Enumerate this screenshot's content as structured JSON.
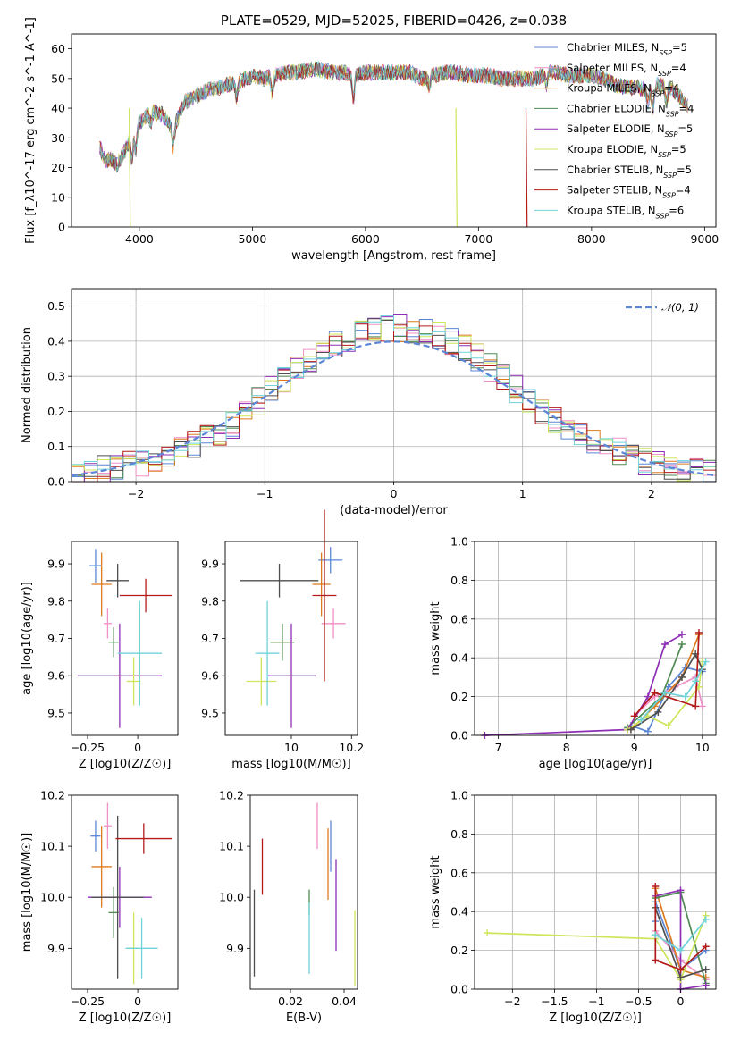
{
  "palette": {
    "Chabrier MILES": "#5b86d6",
    "Salpeter MILES": "#f18fc7",
    "Kroupa MILES": "#dd7a1e",
    "Chabrier ELODIE": "#4f8a52",
    "Salpeter ELODIE": "#8e2fb5",
    "Kroupa ELODIE": "#cde65c",
    "Chabrier STELIB": "#4e4e4e",
    "Salpeter STELIB": "#b31b1b",
    "Kroupa STELIB": "#6fd3d9"
  },
  "chart_data": [
    {
      "id": "spectrum",
      "type": "line",
      "title": "PLATE=0529, MJD=52025, FIBERID=0426, z=0.038",
      "xlabel": "wavelength [Angstrom, rest frame]",
      "ylabel": "Flux [f_λ10^-17 erg cm^-2 s^-1 A^-1]",
      "xlim": [
        3400,
        9100
      ],
      "ylim": [
        0,
        65
      ],
      "xticks": [
        4000,
        5000,
        6000,
        7000,
        8000,
        9000
      ],
      "yticks": [
        0,
        10,
        20,
        30,
        40,
        50,
        60
      ],
      "grid": false,
      "legend_position": "top-right",
      "continuum": {
        "wavelength": [
          3650,
          3700,
          3750,
          3800,
          3850,
          3900,
          3950,
          4000,
          4100,
          4200,
          4300,
          4400,
          4500,
          4600,
          4700,
          4800,
          4900,
          5000,
          5100,
          5200,
          5300,
          5400,
          5500,
          5600,
          5700,
          5800,
          5900,
          6000,
          6100,
          6200,
          6300,
          6400,
          6500,
          6600,
          6700,
          6800,
          6900,
          7000,
          7100,
          7200,
          7300,
          7400,
          7500,
          7600,
          7700,
          7800,
          7900,
          8000,
          8100,
          8200,
          8300,
          8400,
          8500,
          8600,
          8700,
          8800,
          8850
        ],
        "flux": [
          27,
          22,
          23,
          21,
          24,
          28,
          32,
          35,
          39,
          38,
          33,
          42,
          44,
          46,
          47,
          48,
          49,
          51,
          50,
          51,
          52,
          52,
          53,
          53,
          52,
          52,
          51,
          52,
          52,
          52,
          52,
          52,
          50,
          51,
          52,
          52,
          51,
          51,
          51,
          50,
          50,
          50,
          50,
          52,
          52,
          51,
          51,
          51,
          50,
          48,
          47,
          47,
          46,
          48,
          47,
          43,
          41
        ]
      },
      "series": [
        {
          "name": "Chabrier MILES, N_SSP=5",
          "model": "Chabrier MILES"
        },
        {
          "name": "Salpeter MILES, N_SSP=4",
          "model": "Salpeter MILES"
        },
        {
          "name": "Kroupa MILES, N_SSP=4",
          "model": "Kroupa MILES"
        },
        {
          "name": "Chabrier ELODIE, N_SSP=4",
          "model": "Chabrier ELODIE"
        },
        {
          "name": "Salpeter ELODIE, N_SSP=5",
          "model": "Salpeter ELODIE"
        },
        {
          "name": "Kroupa ELODIE, N_SSP=5",
          "model": "Kroupa ELODIE"
        },
        {
          "name": "Chabrier STELIB, N_SSP=5",
          "model": "Chabrier STELIB"
        },
        {
          "name": "Salpeter STELIB, N_SSP=4",
          "model": "Salpeter STELIB"
        },
        {
          "name": "Kroupa STELIB, N_SSP=6",
          "model": "Kroupa STELIB"
        }
      ],
      "legend": [
        {
          "pre": "Chabrier MILES, N",
          "post": "=5",
          "model": "Chabrier MILES"
        },
        {
          "pre": "Salpeter MILES, N",
          "post": "=4",
          "model": "Salpeter MILES"
        },
        {
          "pre": "Kroupa MILES, N",
          "post": "=4",
          "model": "Kroupa MILES"
        },
        {
          "pre": "Chabrier ELODIE, N",
          "post": "=4",
          "model": "Chabrier ELODIE"
        },
        {
          "pre": "Salpeter ELODIE, N",
          "post": "=5",
          "model": "Salpeter ELODIE"
        },
        {
          "pre": "Kroupa ELODIE, N",
          "post": "=5",
          "model": "Kroupa ELODIE"
        },
        {
          "pre": "Chabrier STELIB, N",
          "post": "=5",
          "model": "Chabrier STELIB"
        },
        {
          "pre": "Salpeter STELIB, N",
          "post": "=4",
          "model": "Salpeter STELIB"
        },
        {
          "pre": "Kroupa STELIB, N",
          "post": "=6",
          "model": "Kroupa STELIB"
        }
      ],
      "legend_sub": "SSP"
    },
    {
      "id": "residuals",
      "type": "line",
      "xlabel": "(data-model)/error",
      "ylabel": "Normed distribution",
      "xlim": [
        -2.5,
        2.5
      ],
      "ylim": [
        0,
        0.55
      ],
      "xticks": [
        -2,
        -1,
        0,
        1,
        2
      ],
      "yticks": [
        0.0,
        0.1,
        0.2,
        0.3,
        0.4,
        0.5
      ],
      "grid": true,
      "legend_position": "top-right",
      "legend": [
        "𝒩(0, 1)"
      ],
      "bin_width": 0.1,
      "bin_start": -2.5,
      "envelope": {
        "x": [
          -2.5,
          -2.0,
          -1.5,
          -1.2,
          -1.0,
          -0.8,
          -0.6,
          -0.4,
          -0.2,
          0.0,
          0.2,
          0.4,
          0.6,
          0.8,
          1.0,
          1.2,
          1.5,
          2.0,
          2.5
        ],
        "y": [
          0.02,
          0.05,
          0.11,
          0.17,
          0.25,
          0.31,
          0.36,
          0.4,
          0.43,
          0.44,
          0.43,
          0.41,
          0.37,
          0.31,
          0.25,
          0.19,
          0.12,
          0.05,
          0.02
        ]
      }
    },
    {
      "id": "age-vs-z",
      "type": "scatter",
      "xlabel": "Z [log10(Z/Z☉)]",
      "ylabel": "age [log10(age/yr)]",
      "xlim": [
        -0.33,
        0.2
      ],
      "ylim": [
        9.44,
        9.96
      ],
      "xticks": [
        -0.25,
        0.0
      ],
      "yticks": [
        9.5,
        9.6,
        9.7,
        9.8,
        9.9
      ],
      "points": [
        {
          "model": "Chabrier MILES",
          "x": -0.21,
          "xerr": 0.03,
          "y": 9.895,
          "yerr": 0.045
        },
        {
          "model": "Salpeter MILES",
          "x": -0.15,
          "xerr": 0.02,
          "y": 9.74,
          "yerr": 0.04
        },
        {
          "model": "Kroupa MILES",
          "x": -0.18,
          "xerr": 0.05,
          "y": 9.845,
          "yerr": 0.085
        },
        {
          "model": "Chabrier ELODIE",
          "x": -0.12,
          "xerr": 0.025,
          "y": 9.69,
          "yerr": 0.04
        },
        {
          "model": "Salpeter ELODIE",
          "x": -0.09,
          "xerr": 0.21,
          "y": 9.6,
          "yerr": 0.14
        },
        {
          "model": "Kroupa ELODIE",
          "x": -0.02,
          "xerr": 0.035,
          "y": 9.585,
          "yerr": 0.065
        },
        {
          "model": "Chabrier STELIB",
          "x": -0.1,
          "xerr": 0.055,
          "y": 9.855,
          "yerr": 0.045
        },
        {
          "model": "Salpeter STELIB",
          "x": 0.04,
          "xerr": 0.13,
          "y": 9.815,
          "yerr": 0.045
        },
        {
          "model": "Kroupa STELIB",
          "x": 0.01,
          "xerr": 0.11,
          "y": 9.66,
          "yerr": 0.14
        }
      ]
    },
    {
      "id": "age-vs-mass",
      "type": "scatter",
      "xlabel": "mass [log10(M/M☉)]",
      "ylabel": "",
      "xlim": [
        9.78,
        10.22
      ],
      "ylim": [
        9.44,
        9.96
      ],
      "xticks": [
        10.0,
        10.2
      ],
      "yticks": [
        9.5,
        9.6,
        9.7,
        9.8,
        9.9
      ],
      "points": [
        {
          "model": "Chabrier MILES",
          "x": 10.13,
          "xerr": 0.04,
          "y": 9.91,
          "yerr": 0.035
        },
        {
          "model": "Salpeter MILES",
          "x": 10.14,
          "xerr": 0.04,
          "y": 9.74,
          "yerr": 0.04
        },
        {
          "model": "Kroupa MILES",
          "x": 10.1,
          "xerr": 0.03,
          "y": 9.845,
          "yerr": 0.085
        },
        {
          "model": "Chabrier ELODIE",
          "x": 9.97,
          "xerr": 0.04,
          "y": 9.69,
          "yerr": 0.05
        },
        {
          "model": "Salpeter ELODIE",
          "x": 10.0,
          "xerr": 0.08,
          "y": 9.6,
          "yerr": 0.14
        },
        {
          "model": "Kroupa ELODIE",
          "x": 9.9,
          "xerr": 0.05,
          "y": 9.585,
          "yerr": 0.065
        },
        {
          "model": "Chabrier STELIB",
          "x": 9.96,
          "xerr": 0.13,
          "y": 9.855,
          "yerr": 0.045
        },
        {
          "model": "Salpeter STELIB",
          "x": 10.11,
          "xerr": 0.04,
          "y": 9.815,
          "yerr": 0.23
        },
        {
          "model": "Kroupa STELIB",
          "x": 9.92,
          "xerr": 0.04,
          "y": 9.66,
          "yerr": 0.14
        }
      ]
    },
    {
      "id": "mass-weight-vs-age",
      "type": "line",
      "xlabel": "age [log10(age/yr)]",
      "ylabel": "mass weight",
      "xlim": [
        6.65,
        10.2
      ],
      "ylim": [
        0,
        1.0
      ],
      "xticks": [
        7,
        8,
        9,
        10
      ],
      "yticks": [
        0.0,
        0.2,
        0.4,
        0.6,
        0.8,
        1.0
      ],
      "grid": true,
      "series": [
        {
          "model": "Chabrier MILES",
          "x": [
            8.95,
            9.2,
            9.5,
            9.75,
            10.0
          ],
          "y": [
            0.05,
            0.02,
            0.25,
            0.35,
            0.33
          ]
        },
        {
          "model": "Salpeter MILES",
          "x": [
            9.0,
            9.3,
            9.6,
            9.9,
            10.0
          ],
          "y": [
            0.1,
            0.2,
            0.25,
            0.3,
            0.15
          ]
        },
        {
          "model": "Kroupa MILES",
          "x": [
            8.95,
            9.3,
            9.7,
            9.95
          ],
          "y": [
            0.03,
            0.15,
            0.3,
            0.52
          ]
        },
        {
          "model": "Chabrier ELODIE",
          "x": [
            8.9,
            9.4,
            9.7
          ],
          "y": [
            0.04,
            0.2,
            0.47
          ]
        },
        {
          "model": "Salpeter ELODIE",
          "x": [
            6.8,
            8.9,
            9.2,
            9.45,
            9.7
          ],
          "y": [
            0.0,
            0.03,
            0.2,
            0.47,
            0.52
          ]
        },
        {
          "model": "Kroupa ELODIE",
          "x": [
            8.9,
            9.2,
            9.5,
            9.95,
            10.0
          ],
          "y": [
            0.03,
            0.1,
            0.05,
            0.25,
            0.38
          ]
        },
        {
          "model": "Chabrier STELIB",
          "x": [
            8.95,
            9.35,
            9.7,
            9.9,
            10.0
          ],
          "y": [
            0.03,
            0.12,
            0.3,
            0.42,
            0.34
          ]
        },
        {
          "model": "Salpeter STELIB",
          "x": [
            9.0,
            9.3,
            9.9,
            9.95
          ],
          "y": [
            0.1,
            0.22,
            0.15,
            0.53
          ]
        },
        {
          "model": "Kroupa STELIB",
          "x": [
            9.1,
            9.45,
            9.75,
            9.9,
            10.05
          ],
          "y": [
            0.08,
            0.22,
            0.2,
            0.28,
            0.38
          ]
        }
      ]
    },
    {
      "id": "mass-vs-z",
      "type": "scatter",
      "xlabel": "Z [log10(Z/Z☉)]",
      "ylabel": "mass [log10(M/M☉)]",
      "xlim": [
        -0.33,
        0.2
      ],
      "ylim": [
        9.82,
        10.2
      ],
      "xticks": [
        -0.25,
        0.0
      ],
      "yticks": [
        9.9,
        10.0,
        10.1,
        10.2
      ],
      "points": [
        {
          "model": "Chabrier MILES",
          "x": -0.21,
          "xerr": 0.025,
          "y": 10.12,
          "yerr": 0.03
        },
        {
          "model": "Salpeter MILES",
          "x": -0.15,
          "xerr": 0.02,
          "y": 10.14,
          "yerr": 0.045
        },
        {
          "model": "Kroupa MILES",
          "x": -0.18,
          "xerr": 0.05,
          "y": 10.06,
          "yerr": 0.08
        },
        {
          "model": "Chabrier ELODIE",
          "x": -0.12,
          "xerr": 0.025,
          "y": 9.97,
          "yerr": 0.05
        },
        {
          "model": "Salpeter ELODIE",
          "x": -0.09,
          "xerr": 0.16,
          "y": 10.0,
          "yerr": 0.06
        },
        {
          "model": "Kroupa ELODIE",
          "x": -0.02,
          "xerr": 0.03,
          "y": 9.9,
          "yerr": 0.07
        },
        {
          "model": "Chabrier STELIB",
          "x": -0.1,
          "xerr": 0.13,
          "y": 10.0,
          "yerr": 0.16
        },
        {
          "model": "Salpeter STELIB",
          "x": 0.03,
          "xerr": 0.14,
          "y": 10.115,
          "yerr": 0.03
        },
        {
          "model": "Kroupa STELIB",
          "x": 0.02,
          "xerr": 0.08,
          "y": 9.9,
          "yerr": 0.06
        }
      ]
    },
    {
      "id": "mass-vs-ebv",
      "type": "scatter",
      "xlabel": "E(B-V)",
      "ylabel": "",
      "xlim": [
        0.005,
        0.045
      ],
      "ylim": [
        9.82,
        10.2
      ],
      "xticks": [
        0.02,
        0.04
      ],
      "yticks": [
        9.9,
        10.0,
        10.1,
        10.2
      ],
      "points": [
        {
          "model": "Chabrier MILES",
          "x": 0.035,
          "xerr": 0.0,
          "y": 10.1,
          "yerr": 0.05
        },
        {
          "model": "Salpeter MILES",
          "x": 0.03,
          "xerr": 0.0,
          "y": 10.14,
          "yerr": 0.045
        },
        {
          "model": "Kroupa MILES",
          "x": 0.034,
          "xerr": 0.0,
          "y": 10.065,
          "yerr": 0.07
        },
        {
          "model": "Chabrier ELODIE",
          "x": 0.027,
          "xerr": 0.0,
          "y": 9.99,
          "yerr": 0.025
        },
        {
          "model": "Salpeter ELODIE",
          "x": 0.037,
          "xerr": 0.0,
          "y": 9.985,
          "yerr": 0.09
        },
        {
          "model": "Kroupa ELODIE",
          "x": 0.044,
          "xerr": 0.0,
          "y": 9.9,
          "yerr": 0.075
        },
        {
          "model": "Chabrier STELIB",
          "x": 0.0065,
          "xerr": 0.0,
          "y": 9.93,
          "yerr": 0.085
        },
        {
          "model": "Salpeter STELIB",
          "x": 0.0095,
          "xerr": 0.0,
          "y": 10.06,
          "yerr": 0.055
        },
        {
          "model": "Kroupa STELIB",
          "x": 0.027,
          "xerr": 0.0,
          "y": 9.92,
          "yerr": 0.07
        }
      ]
    },
    {
      "id": "mass-weight-vs-z",
      "type": "line",
      "xlabel": "Z [log10(Z/Z☉)]",
      "ylabel": "mass weight",
      "xlim": [
        -2.45,
        0.42
      ],
      "ylim": [
        0,
        1.0
      ],
      "xticks": [
        -2.0,
        -1.5,
        -1.0,
        -0.5,
        0.0
      ],
      "yticks": [
        0.0,
        0.2,
        0.4,
        0.6,
        0.8,
        1.0
      ],
      "grid": true,
      "series": [
        {
          "model": "Chabrier MILES",
          "x": [
            -0.3,
            -0.3,
            0.0,
            0.3
          ],
          "y": [
            0.35,
            0.45,
            0.1,
            0.2
          ]
        },
        {
          "model": "Salpeter MILES",
          "x": [
            -0.3,
            0.0,
            0.3
          ],
          "y": [
            0.3,
            0.15,
            0.05
          ]
        },
        {
          "model": "Kroupa MILES",
          "x": [
            -0.3,
            0.0,
            0.3
          ],
          "y": [
            0.52,
            0.1,
            0.06
          ]
        },
        {
          "model": "Chabrier ELODIE",
          "x": [
            -0.3,
            0.0,
            0.3
          ],
          "y": [
            0.47,
            0.5,
            0.03
          ]
        },
        {
          "model": "Salpeter ELODIE",
          "x": [
            -0.3,
            0.0,
            0.0,
            0.3
          ],
          "y": [
            0.48,
            0.51,
            0.0,
            0.02
          ]
        },
        {
          "model": "Kroupa ELODIE",
          "x": [
            -2.3,
            -0.3,
            0.0,
            0.3
          ],
          "y": [
            0.29,
            0.26,
            0.05,
            0.38
          ]
        },
        {
          "model": "Chabrier STELIB",
          "x": [
            -0.3,
            0.0,
            0.3
          ],
          "y": [
            0.42,
            0.06,
            0.1
          ]
        },
        {
          "model": "Salpeter STELIB",
          "x": [
            -0.3,
            -0.3,
            0.0,
            0.3
          ],
          "y": [
            0.53,
            0.15,
            0.1,
            0.22
          ]
        },
        {
          "model": "Kroupa STELIB",
          "x": [
            -0.3,
            0.0,
            0.3
          ],
          "y": [
            0.28,
            0.2,
            0.36
          ]
        }
      ]
    }
  ]
}
